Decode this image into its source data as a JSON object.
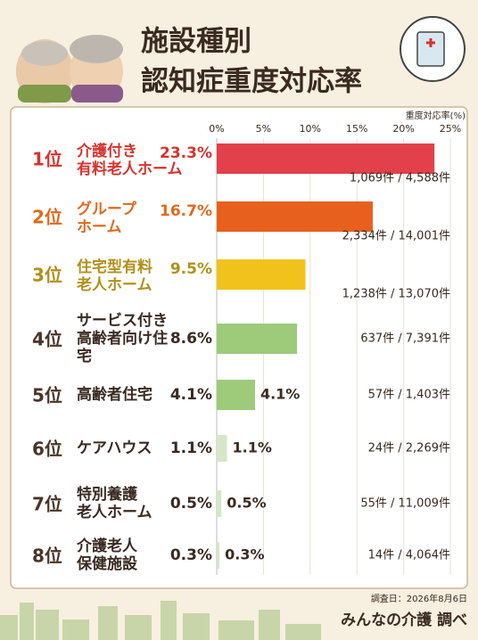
{
  "chart_data": {
    "type": "bar",
    "title": [
      "施設種別",
      "認知症重度対応率"
    ],
    "axis_label": "重度対応率(%)",
    "xlim": [
      0,
      25
    ],
    "xticks": [
      {
        "value": 0,
        "label": "0%"
      },
      {
        "value": 5,
        "label": "5%"
      },
      {
        "value": 10,
        "label": "10%"
      },
      {
        "value": 15,
        "label": "15%"
      },
      {
        "value": 20,
        "label": "20%"
      },
      {
        "value": 25,
        "label": "25%"
      }
    ],
    "ranks": [
      "1位",
      "2位",
      "3位",
      "4位",
      "5位",
      "6位",
      "7位",
      "8位"
    ],
    "categories": [
      "介護付き\n有料老人ホーム",
      "グループ\nホーム",
      "住宅型有料\n老人ホーム",
      "サービス付き\n高齢者向け住\n宅",
      "高齢者住宅",
      "ケアハウス",
      "特別養護\n老人ホーム",
      "介護老人\n保健施設"
    ],
    "values": [
      23.3,
      16.7,
      9.5,
      8.6,
      4.1,
      1.1,
      0.5,
      0.3
    ],
    "value_labels": [
      "23.3%",
      "16.7%",
      "9.5%",
      "8.6%",
      "4.1%",
      "1.1%",
      "0.5%",
      "0.3%"
    ],
    "counts": [
      "1,069件 / 4,588件",
      "2,334件 / 14,001件",
      "1,238件 / 13,070件",
      "637件 / 7,391件",
      "57件 / 1,403件",
      "24件 / 2,269件",
      "55件 / 11,009件",
      "14件 / 4,064件"
    ],
    "colors": [
      "#e2404a",
      "#e8601e",
      "#f2c21c",
      "#9dcb7a",
      "#9dcb7a",
      "#d5e7c6",
      "#d5e7c6",
      "#d5e7c6"
    ],
    "rank_colors": [
      "#d8322e",
      "#e06a1c",
      "#b0901a",
      "#4a3428",
      "#4a3428",
      "#4a3428",
      "#4a3428",
      "#4a3428"
    ],
    "survey_date": "調査日：2026年8月6日",
    "source": "みんなの介護 調べ"
  }
}
